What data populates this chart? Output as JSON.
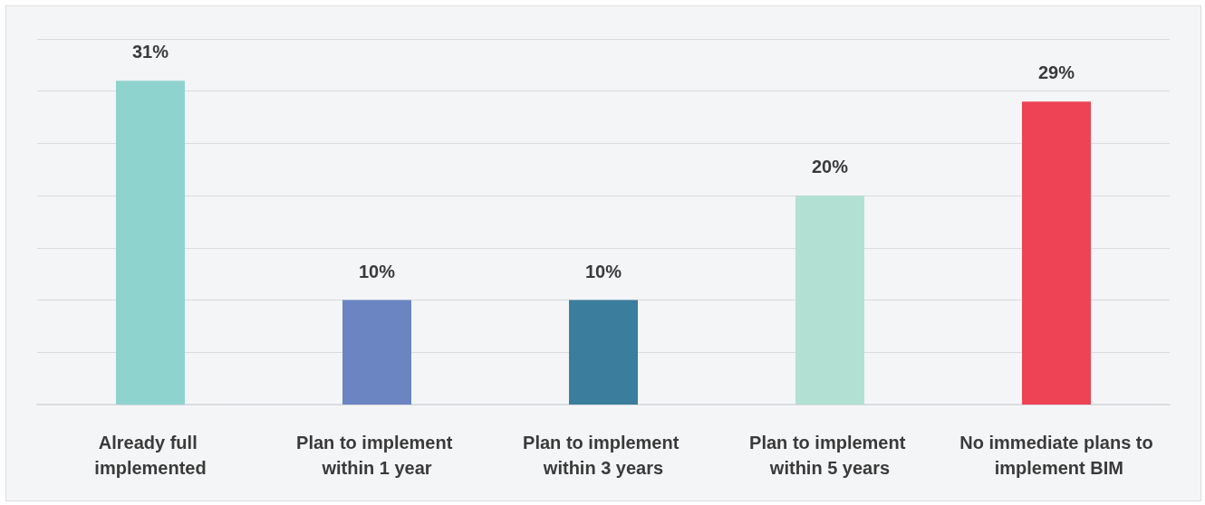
{
  "chart_data": {
    "type": "bar",
    "categories": [
      "Already full implemented",
      "Plan to implement within 1 year",
      "Plan to implement within 3 years",
      "Plan to implement within 5 years",
      "No immediate plans to implement BIM"
    ],
    "values": [
      31,
      10,
      10,
      20,
      29
    ],
    "colors": [
      "#8fd3cf",
      "#6a85c2",
      "#3a7d9c",
      "#b2e0d2",
      "#ee4355"
    ],
    "value_labels": [
      "31%",
      "10%",
      "10%",
      "20%",
      "29%"
    ],
    "ylim": [
      0,
      35
    ],
    "yticks": [
      0,
      5,
      10,
      15,
      20,
      25,
      30,
      35
    ],
    "grid": "y",
    "tick_labels": "x"
  }
}
